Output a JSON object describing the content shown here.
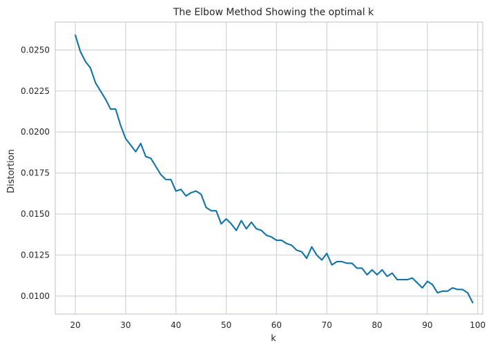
{
  "chart_data": {
    "type": "line",
    "title": "The Elbow Method Showing the optimal k",
    "xlabel": "k",
    "ylabel": "Distortion",
    "xlim": [
      16,
      101
    ],
    "ylim": [
      0.0089,
      0.0267
    ],
    "xticks": [
      20,
      30,
      40,
      50,
      60,
      70,
      80,
      90,
      100
    ],
    "xtick_labels": [
      "20",
      "30",
      "40",
      "50",
      "60",
      "70",
      "80",
      "90",
      "100"
    ],
    "yticks": [
      0.01,
      0.0125,
      0.015,
      0.0175,
      0.02,
      0.0225,
      0.025
    ],
    "ytick_labels": [
      "0.0100",
      "0.0125",
      "0.0150",
      "0.0175",
      "0.0200",
      "0.0225",
      "0.0250"
    ],
    "grid": true,
    "line_color": "#0f73a6",
    "series": [
      {
        "x": [
          20,
          21,
          22,
          23,
          24,
          25,
          26,
          27,
          28,
          29,
          30,
          31,
          32,
          33,
          34,
          35,
          36,
          37,
          38,
          39,
          40,
          41,
          42,
          43,
          44,
          45,
          46,
          47,
          48,
          49,
          50,
          51,
          52,
          53,
          54,
          55,
          56,
          57,
          58,
          59,
          60,
          61,
          62,
          63,
          64,
          65,
          66,
          67,
          68,
          69,
          70,
          71,
          72,
          73,
          74,
          75,
          76,
          77,
          78,
          79,
          80,
          81,
          82,
          83,
          84,
          85,
          86,
          87,
          88,
          89,
          90,
          91,
          92,
          93,
          94,
          95,
          96,
          97,
          98,
          99
        ],
        "values": [
          0.0259,
          0.0249,
          0.0243,
          0.0239,
          0.023,
          0.0225,
          0.022,
          0.0214,
          0.0214,
          0.0204,
          0.0196,
          0.0192,
          0.0188,
          0.0193,
          0.0185,
          0.0184,
          0.0179,
          0.0174,
          0.0171,
          0.0171,
          0.0164,
          0.0165,
          0.0161,
          0.0163,
          0.0164,
          0.0162,
          0.0154,
          0.0152,
          0.0152,
          0.0144,
          0.0147,
          0.0144,
          0.014,
          0.0146,
          0.0141,
          0.0145,
          0.0141,
          0.014,
          0.0137,
          0.0136,
          0.0134,
          0.0134,
          0.0132,
          0.0131,
          0.0128,
          0.0127,
          0.0123,
          0.013,
          0.0125,
          0.0122,
          0.0126,
          0.0119,
          0.0121,
          0.0121,
          0.012,
          0.012,
          0.0117,
          0.0117,
          0.0113,
          0.0116,
          0.0113,
          0.0116,
          0.0112,
          0.0114,
          0.011,
          0.011,
          0.011,
          0.0111,
          0.0108,
          0.0105,
          0.0109,
          0.0107,
          0.0102,
          0.0103,
          0.0103,
          0.0105,
          0.0104,
          0.0104,
          0.0102,
          0.0096
        ]
      }
    ]
  }
}
